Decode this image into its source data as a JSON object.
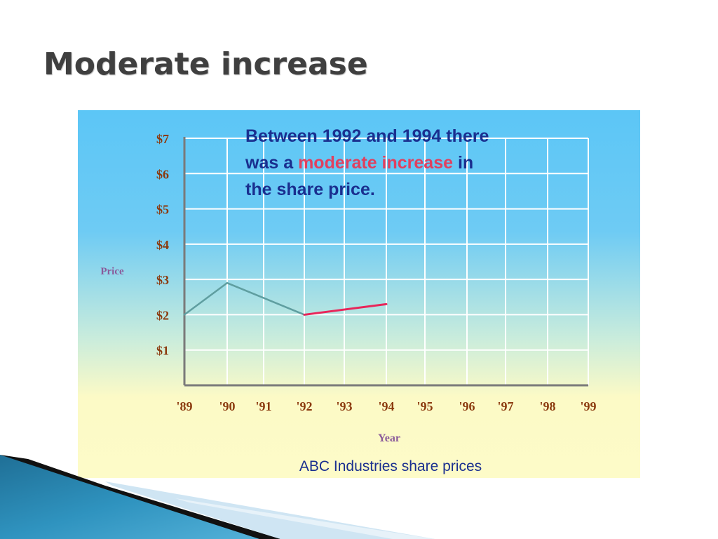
{
  "slide": {
    "title": "Moderate increase"
  },
  "chart_data": {
    "type": "line",
    "title": "ABC Industries share prices",
    "xlabel": "Year",
    "ylabel": "Price",
    "x_ticks": [
      "'89",
      "'90",
      "'91",
      "'92",
      "'93",
      "'94",
      "'95",
      "'96",
      "'97",
      "'98",
      "'99"
    ],
    "y_ticks": [
      "$1",
      "$2",
      "$3",
      "$4",
      "$5",
      "$6",
      "$7"
    ],
    "ylim": [
      0,
      7
    ],
    "grid": true,
    "series": [
      {
        "x": [
          1989,
          1990,
          1992
        ],
        "y": [
          2.0,
          2.9,
          2.0
        ],
        "color": "#5f9ea0"
      },
      {
        "x": [
          1992,
          1994
        ],
        "y": [
          2.0,
          2.3
        ],
        "color": "#e8265a"
      }
    ],
    "annotation": {
      "parts": [
        {
          "text": "Between 1992 and 1994 there was a ",
          "color": "#1a2f8f"
        },
        {
          "text": "moderate increase",
          "color": "#e0405f"
        },
        {
          "text": " in the share price.",
          "color": "#1a2f8f"
        }
      ]
    },
    "colors": {
      "tick_label": "#8b3a0e",
      "axis_label": "#8a5a9a",
      "title": "#1a2f8f",
      "grid": "#ffffff",
      "axis": "#7a7a7a",
      "bg_top": "#5cc6f6",
      "bg_bottom": "#fdfbc8"
    }
  }
}
